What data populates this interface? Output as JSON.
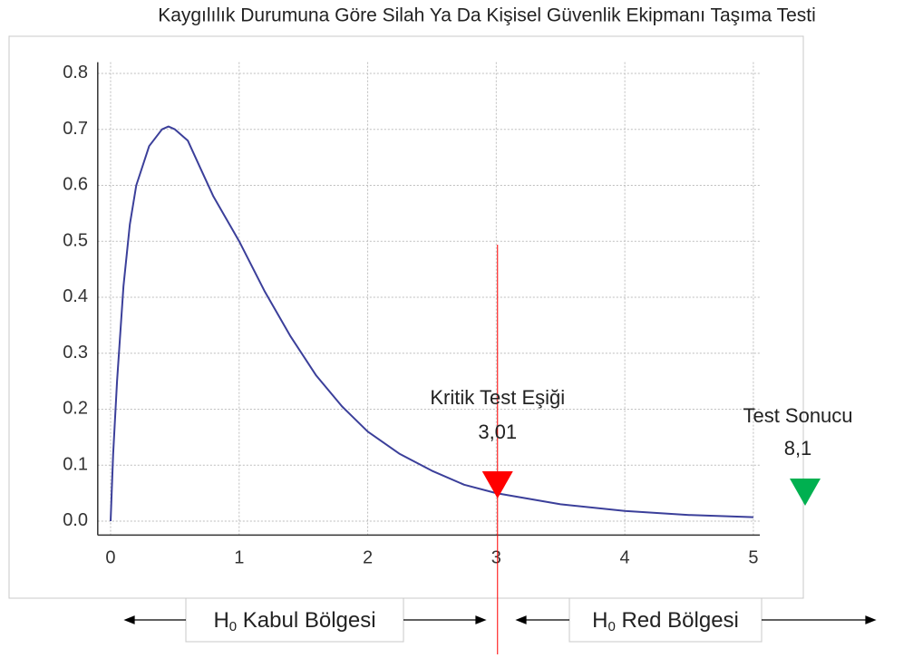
{
  "chart_data": {
    "type": "line",
    "title": "Kaygılılık Durumuna Göre Silah Ya Da Kişisel Güvenlik Ekipmanı Taşıma Testi",
    "x": [
      0,
      0.02,
      0.05,
      0.1,
      0.15,
      0.2,
      0.3,
      0.4,
      0.45,
      0.5,
      0.6,
      0.7,
      0.8,
      0.9,
      1.0,
      1.2,
      1.4,
      1.6,
      1.8,
      2.0,
      2.25,
      2.5,
      2.75,
      3.0,
      3.5,
      4.0,
      4.5,
      5.0
    ],
    "series": [
      {
        "color": "#3b3f9a",
        "values": [
          0,
          0.12,
          0.25,
          0.42,
          0.53,
          0.6,
          0.67,
          0.7,
          0.705,
          0.7,
          0.68,
          0.63,
          0.58,
          0.54,
          0.5,
          0.41,
          0.33,
          0.26,
          0.205,
          0.16,
          0.12,
          0.09,
          0.065,
          0.05,
          0.03,
          0.018,
          0.011,
          0.007
        ]
      }
    ],
    "xlim": [
      -0.1,
      5.05
    ],
    "ylim": [
      -0.025,
      0.82
    ],
    "xticks": [
      0,
      1,
      2,
      3,
      4,
      5
    ],
    "yticks": [
      {
        "value": 0,
        "label": "0.0"
      },
      0.1,
      0.2,
      0.3,
      0.4,
      0.5,
      0.6,
      0.7,
      0.8
    ],
    "grid": true,
    "critical": {
      "name": "Kritik Test Eşiği",
      "value": 3.01,
      "label": "3,01",
      "color": "#ff0000"
    },
    "result": {
      "name": "Test Sonucu",
      "value": 8.1,
      "label": "8,1",
      "color": "#00b050"
    },
    "regions": [
      {
        "symbol": "H",
        "subscript": "0",
        "text": " Kabul Bölgesi"
      },
      {
        "symbol": "H",
        "subscript": "0",
        "text": " Red Bölgesi"
      }
    ]
  }
}
